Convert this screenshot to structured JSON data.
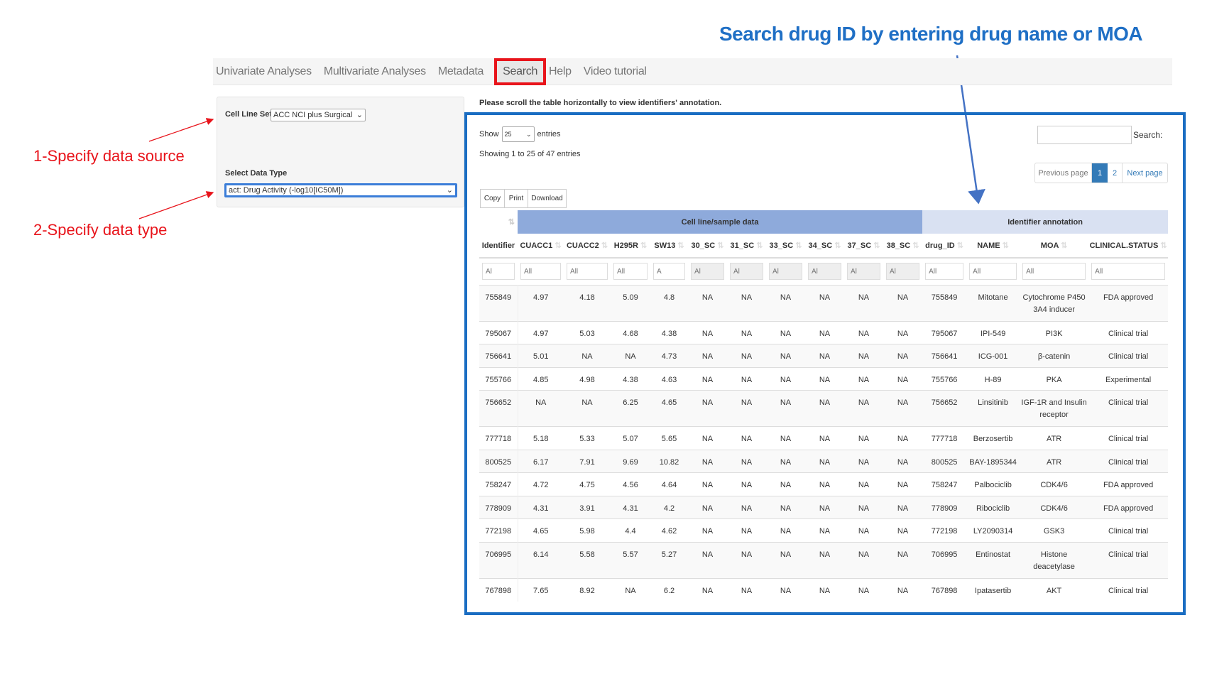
{
  "annotations": {
    "headline": "Search drug ID by entering drug  name or MOA",
    "step1": "1-Specify data source",
    "step2": "2-Specify data type",
    "highlight_color": "#e8141b",
    "box_color": "#1a6dc2"
  },
  "nav": {
    "items": [
      {
        "label": "Univariate Analyses",
        "active": false
      },
      {
        "label": "Multivariate Analyses",
        "active": false
      },
      {
        "label": "Metadata",
        "active": false
      },
      {
        "label": "Search",
        "active": true
      },
      {
        "label": "Help",
        "active": false
      },
      {
        "label": "Video tutorial",
        "active": false
      }
    ]
  },
  "sidebar": {
    "cell_line_label": "Cell Line Set",
    "cell_line_value": "ACC NCI plus Surgical",
    "data_type_label": "Select Data Type",
    "data_type_value": "act: Drug Activity (-log10[IC50M])"
  },
  "main": {
    "note": "Please scroll the table horizontally to view identifiers' annotation.",
    "show_label": "Show",
    "entries_value": "25",
    "entries_label": "entries",
    "info": "Showing 1 to 25 of 47 entries",
    "search_label": "Search:",
    "search_value": "",
    "pagination": {
      "previous": "Previous page",
      "pages": [
        "1",
        "2"
      ],
      "current": "1",
      "next": "Next page"
    },
    "buttons": {
      "copy": "Copy",
      "print": "Print",
      "download": "Download"
    },
    "accent": "#337ab7"
  },
  "table": {
    "groups": [
      {
        "label": "Cell line/sample data",
        "color": "#8eaadb"
      },
      {
        "label": "Identifier annotation",
        "color": "#d9e1f2"
      }
    ],
    "columns": [
      "Identifier",
      "CUACC1",
      "CUACC2",
      "H295R",
      "SW13",
      "30_SC",
      "31_SC",
      "33_SC",
      "34_SC",
      "37_SC",
      "38_SC",
      "drug_ID",
      "NAME",
      "MOA",
      "CLINICAL.STATUS"
    ],
    "filter_placeholders": [
      "Al",
      "All",
      "All",
      "All",
      "A",
      "Al",
      "Al",
      "Al",
      "Al",
      "Al",
      "Al",
      "All",
      "All",
      "All",
      "All"
    ],
    "rows": [
      [
        "755849",
        "4.97",
        "4.18",
        "5.09",
        "4.8",
        "NA",
        "NA",
        "NA",
        "NA",
        "NA",
        "NA",
        "755849",
        "Mitotane",
        "Cytochrome P450 3A4 inducer",
        "FDA approved"
      ],
      [
        "795067",
        "4.97",
        "5.03",
        "4.68",
        "4.38",
        "NA",
        "NA",
        "NA",
        "NA",
        "NA",
        "NA",
        "795067",
        "IPI-549",
        "PI3K",
        "Clinical trial"
      ],
      [
        "756641",
        "5.01",
        "NA",
        "NA",
        "4.73",
        "NA",
        "NA",
        "NA",
        "NA",
        "NA",
        "NA",
        "756641",
        "ICG-001",
        "β-catenin",
        "Clinical trial"
      ],
      [
        "755766",
        "4.85",
        "4.98",
        "4.38",
        "4.63",
        "NA",
        "NA",
        "NA",
        "NA",
        "NA",
        "NA",
        "755766",
        "H-89",
        "PKA",
        "Experimental"
      ],
      [
        "756652",
        "NA",
        "NA",
        "6.25",
        "4.65",
        "NA",
        "NA",
        "NA",
        "NA",
        "NA",
        "NA",
        "756652",
        "Linsitinib",
        "IGF-1R and Insulin receptor",
        "Clinical trial"
      ],
      [
        "777718",
        "5.18",
        "5.33",
        "5.07",
        "5.65",
        "NA",
        "NA",
        "NA",
        "NA",
        "NA",
        "NA",
        "777718",
        "Berzosertib",
        "ATR",
        "Clinical trial"
      ],
      [
        "800525",
        "6.17",
        "7.91",
        "9.69",
        "10.82",
        "NA",
        "NA",
        "NA",
        "NA",
        "NA",
        "NA",
        "800525",
        "BAY-1895344",
        "ATR",
        "Clinical trial"
      ],
      [
        "758247",
        "4.72",
        "4.75",
        "4.56",
        "4.64",
        "NA",
        "NA",
        "NA",
        "NA",
        "NA",
        "NA",
        "758247",
        "Palbociclib",
        "CDK4/6",
        "FDA approved"
      ],
      [
        "778909",
        "4.31",
        "3.91",
        "4.31",
        "4.2",
        "NA",
        "NA",
        "NA",
        "NA",
        "NA",
        "NA",
        "778909",
        "Ribociclib",
        "CDK4/6",
        "FDA approved"
      ],
      [
        "772198",
        "4.65",
        "5.98",
        "4.4",
        "4.62",
        "NA",
        "NA",
        "NA",
        "NA",
        "NA",
        "NA",
        "772198",
        "LY2090314",
        "GSK3",
        "Clinical trial"
      ],
      [
        "706995",
        "6.14",
        "5.58",
        "5.57",
        "5.27",
        "NA",
        "NA",
        "NA",
        "NA",
        "NA",
        "NA",
        "706995",
        "Entinostat",
        "Histone deacetylase",
        "Clinical trial"
      ],
      [
        "767898",
        "7.65",
        "8.92",
        "NA",
        "6.2",
        "NA",
        "NA",
        "NA",
        "NA",
        "NA",
        "NA",
        "767898",
        "Ipatasertib",
        "AKT",
        "Clinical trial"
      ]
    ]
  }
}
